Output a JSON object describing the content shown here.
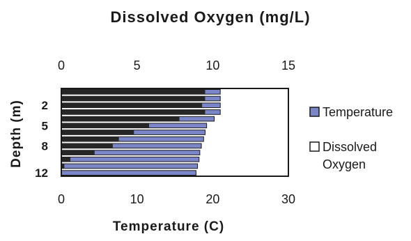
{
  "chart_data": {
    "type": "bar",
    "orientation": "horizontal",
    "title": "Dissolved Oxygen (mg/L)",
    "xlabel": "Temperature (C)",
    "ylabel": "Depth (m)",
    "top_axis": {
      "ticks": [
        "0",
        "5",
        "10",
        "15"
      ],
      "range": [
        0,
        15
      ]
    },
    "bottom_axis": {
      "ticks": [
        "0",
        "10",
        "20",
        "30"
      ],
      "range": [
        0,
        30
      ]
    },
    "y_tick_labels": [
      "2",
      "5",
      "8",
      "12"
    ],
    "depths": [
      0,
      1,
      2,
      3,
      4,
      5,
      6,
      7,
      8,
      9,
      10,
      11,
      12
    ],
    "series": [
      {
        "name": "Temperature",
        "axis": "bottom",
        "color": "#7b86c8",
        "values": [
          21.0,
          21.0,
          21.0,
          21.0,
          20.2,
          19.2,
          19.0,
          18.8,
          18.5,
          18.3,
          18.2,
          18.0,
          17.8
        ]
      },
      {
        "name": "Dissolved Oxygen",
        "axis": "top",
        "color": "#262626",
        "values": [
          9.5,
          9.5,
          9.3,
          9.5,
          7.8,
          5.8,
          4.8,
          3.8,
          3.4,
          2.2,
          0.6,
          0.2,
          0.0
        ]
      }
    ],
    "legend": {
      "position": "right",
      "items": [
        {
          "label": "Temperature",
          "color": "#7b86c8"
        },
        {
          "label": "Dissolved",
          "label2": "Oxygen",
          "color": "#ffffff"
        }
      ]
    },
    "grid": false
  }
}
